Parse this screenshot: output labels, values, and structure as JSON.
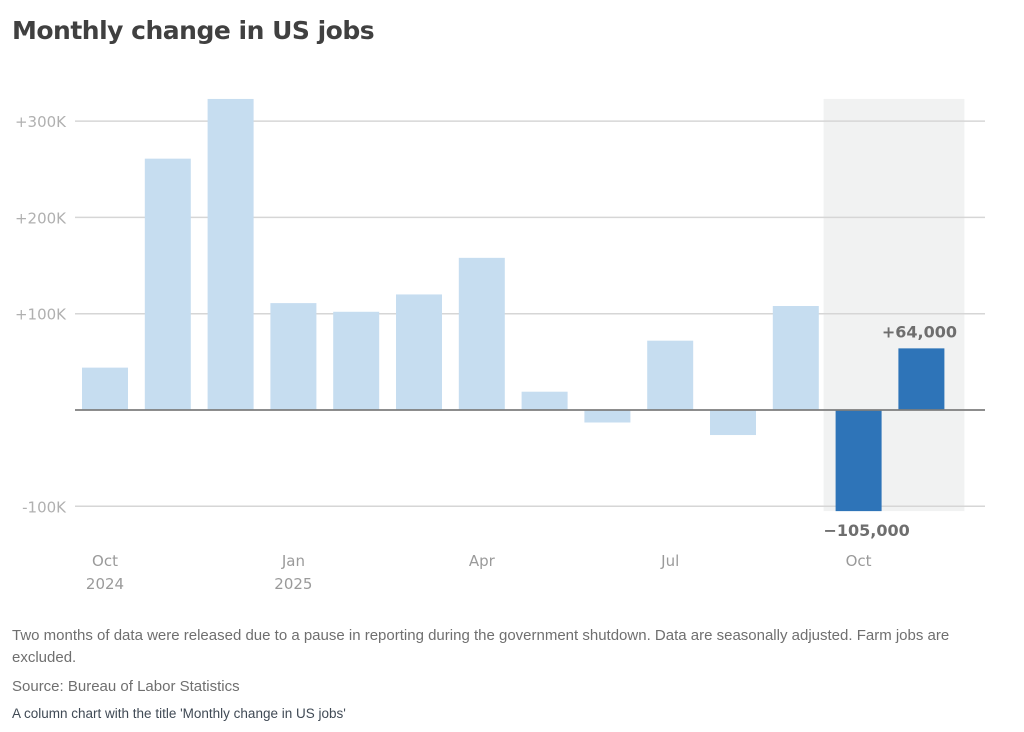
{
  "colors": {
    "bar_default": "#c6ddf0",
    "bar_highlight": "#2e74b8",
    "shade": "#f1f2f2",
    "gridline": "#d6d6d6",
    "zero_line": "#7d7d7d"
  },
  "chart_data": {
    "type": "bar",
    "title": "Monthly change in US jobs",
    "xlabel": "",
    "ylabel": "",
    "ylim": [
      -105000,
      323000
    ],
    "grid": true,
    "categories": [
      "Oct 2024",
      "Nov 2024",
      "Dec 2024",
      "Jan 2025",
      "Feb 2025",
      "Mar 2025",
      "Apr 2025",
      "May 2025",
      "Jun 2025",
      "Jul 2025",
      "Aug 2025",
      "Sep 2025",
      "Oct 2025",
      "Nov 2025"
    ],
    "values": [
      44000,
      261000,
      323000,
      111000,
      102000,
      120000,
      158000,
      19000,
      -13000,
      72000,
      -26000,
      108000,
      -105000,
      64000
    ],
    "highlighted": [
      false,
      false,
      false,
      false,
      false,
      false,
      false,
      false,
      false,
      false,
      false,
      false,
      true,
      true
    ],
    "shaded_range": [
      "Oct 2025",
      "Nov 2025"
    ],
    "y_ticks": [
      {
        "value": 300000,
        "label": "+300K"
      },
      {
        "value": 200000,
        "label": "+200K"
      },
      {
        "value": 100000,
        "label": "+100K"
      },
      {
        "value": -100000,
        "label": "-100K"
      }
    ],
    "x_ticks": [
      {
        "index": 0,
        "label": [
          "Oct",
          "2024"
        ]
      },
      {
        "index": 3,
        "label": [
          "Jan",
          "2025"
        ]
      },
      {
        "index": 6,
        "label": [
          "Apr",
          ""
        ]
      },
      {
        "index": 9,
        "label": [
          "Jul",
          ""
        ]
      },
      {
        "index": 12,
        "label": [
          "Oct",
          ""
        ]
      }
    ],
    "annotations": [
      {
        "index": 12,
        "label": "−105,000",
        "position": "below"
      },
      {
        "index": 13,
        "label": "+64,000",
        "position": "above"
      }
    ]
  },
  "footer": {
    "note": "Two months of data were released due to a pause in reporting during the government shutdown. Data are seasonally adjusted. Farm jobs are excluded.",
    "source": "Source: Bureau of Labor Statistics",
    "alt_text": "A column chart with the title 'Monthly change in US jobs'"
  }
}
